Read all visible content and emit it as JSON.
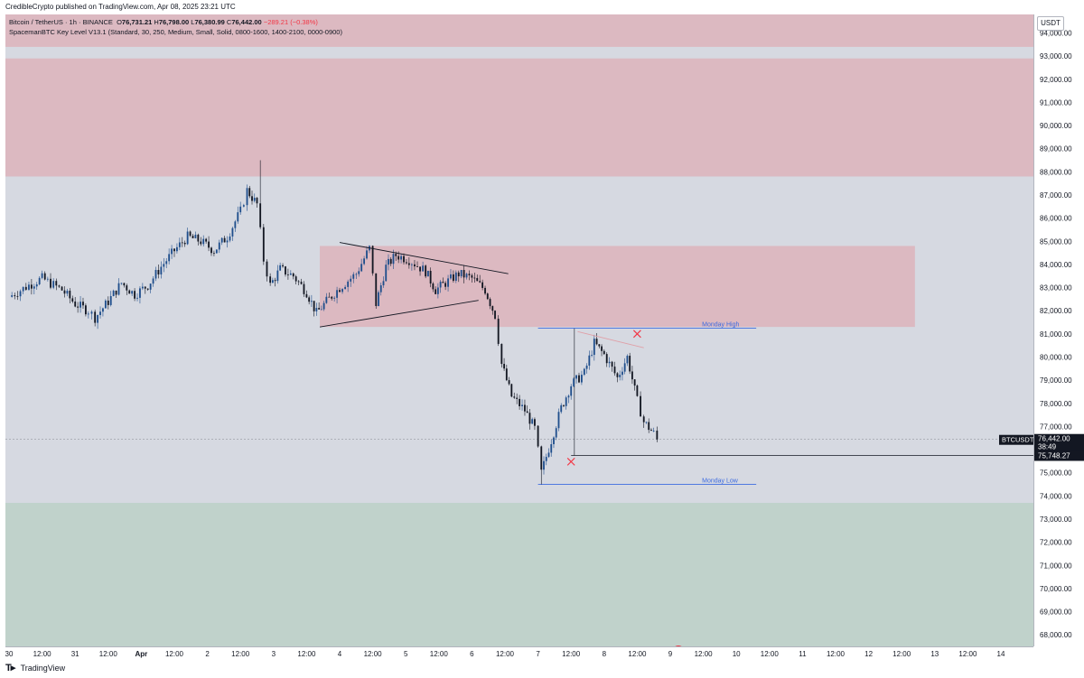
{
  "header": {
    "publisher_line": "CredibleCrypto published on TradingView.com, Apr 08, 2025 23:21 UTC"
  },
  "legend": {
    "symbol": "Bitcoin / TetherUS · 1h · BINANCE",
    "o_label": "O",
    "o_value": "76,731.21",
    "h_label": "H",
    "h_value": "76,798.00",
    "l_label": "L",
    "l_value": "76,380.99",
    "c_label": "C",
    "c_value": "76,442.00",
    "change": "−289.21 (−0.38%)",
    "indicator": "SpacemanBTC Key Level V13.1 (Standard, 30, 250, Medium, Small, Solid, 0800-1600, 1400-2100, 0000-0900)"
  },
  "currency": "USDT",
  "footer": {
    "brand": "TradingView",
    "brand_icon": "tradingview-logo-icon"
  },
  "colors": {
    "up": "#1f4e8c",
    "down": "#131722",
    "bg": "#d6d9e1",
    "supply_zone": "#dcb9c1",
    "demand_zone": "#c0d2cb",
    "monday_line": "#3d6be0",
    "marker": "#f23645"
  },
  "chart_data": {
    "type": "candlestick",
    "symbol": "BTCUSDT",
    "timeframe": "1h",
    "ylim": [
      67500,
      94800
    ],
    "x_tick_labels": [
      "30",
      "12:00",
      "31",
      "12:00",
      "Apr",
      "12:00",
      "2",
      "12:00",
      "3",
      "12:00",
      "4",
      "12:00",
      "5",
      "12:00",
      "6",
      "12:00",
      "7",
      "12:00",
      "8",
      "12:00",
      "9",
      "12:00",
      "10",
      "12:00",
      "11",
      "12:00",
      "12",
      "12:00",
      "13",
      "12:00",
      "14"
    ],
    "x_tick_days": [
      0,
      0.5,
      1,
      1.5,
      2,
      2.5,
      3,
      3.5,
      4,
      4.5,
      5,
      5.5,
      6,
      6.5,
      7,
      7.5,
      8,
      8.5,
      9,
      9.5,
      10,
      10.5,
      11,
      11.5,
      12,
      12.5,
      13,
      13.5,
      14,
      14.5,
      15
    ],
    "y_tick_values": [
      68000,
      69000,
      70000,
      71000,
      72000,
      73000,
      74000,
      75000,
      76000,
      77000,
      78000,
      79000,
      80000,
      81000,
      82000,
      83000,
      84000,
      85000,
      86000,
      87000,
      88000,
      89000,
      90000,
      91000,
      92000,
      93000,
      94000
    ],
    "y_tick_labels": [
      "68,000.00",
      "69,000.00",
      "70,000.00",
      "71,000.00",
      "72,000.00",
      "73,000.00",
      "74,000.00",
      "75,000.00",
      "76,000.00",
      "77,000.00",
      "78,000.00",
      "79,000.00",
      "80,000.00",
      "81,000.00",
      "82,000.00",
      "83,000.00",
      "84,000.00",
      "85,000.00",
      "86,000.00",
      "87,000.00",
      "88,000.00",
      "89,000.00",
      "90,000.00",
      "91,000.00",
      "92,000.00",
      "93,000.00",
      "94,000.00"
    ],
    "path_close": [
      [
        0,
        82600
      ],
      [
        0.3,
        83100
      ],
      [
        0.5,
        83400
      ],
      [
        0.8,
        82900
      ],
      [
        1.0,
        82300
      ],
      [
        1.2,
        82000
      ],
      [
        1.3,
        81700
      ],
      [
        1.5,
        82400
      ],
      [
        1.7,
        83200
      ],
      [
        1.9,
        82700
      ],
      [
        2.1,
        83100
      ],
      [
        2.3,
        83900
      ],
      [
        2.5,
        84600
      ],
      [
        2.7,
        85200
      ],
      [
        2.9,
        85000
      ],
      [
        3.1,
        84600
      ],
      [
        3.3,
        85200
      ],
      [
        3.5,
        86300
      ],
      [
        3.6,
        87200
      ],
      [
        3.75,
        86600
      ],
      [
        3.85,
        84200
      ],
      [
        3.95,
        83100
      ],
      [
        4.1,
        83800
      ],
      [
        4.3,
        83500
      ],
      [
        4.5,
        82800
      ],
      [
        4.65,
        81900
      ],
      [
        4.8,
        82400
      ],
      [
        5.0,
        83000
      ],
      [
        5.25,
        83600
      ],
      [
        5.45,
        84700
      ],
      [
        5.55,
        82300
      ],
      [
        5.7,
        83900
      ],
      [
        5.85,
        84400
      ],
      [
        6.05,
        84200
      ],
      [
        6.3,
        83700
      ],
      [
        6.45,
        82900
      ],
      [
        6.6,
        83200
      ],
      [
        6.8,
        83600
      ],
      [
        7.0,
        83400
      ],
      [
        7.2,
        82900
      ],
      [
        7.35,
        81800
      ],
      [
        7.45,
        79700
      ],
      [
        7.6,
        78300
      ],
      [
        7.8,
        77700
      ],
      [
        7.95,
        76900
      ],
      [
        8.05,
        75000
      ],
      [
        8.2,
        76400
      ],
      [
        8.35,
        77800
      ],
      [
        8.5,
        78800
      ],
      [
        8.7,
        79300
      ],
      [
        8.85,
        80600
      ],
      [
        9.0,
        80100
      ],
      [
        9.2,
        79100
      ],
      [
        9.35,
        80000
      ],
      [
        9.5,
        78100
      ],
      [
        9.6,
        77200
      ],
      [
        9.75,
        76700
      ],
      [
        9.8,
        76442
      ]
    ],
    "last_price": "76,442.00",
    "last_price_countdown": "38:49",
    "last_price_symbol": "BTCUSDT",
    "key_level_price": "75,748.27",
    "key_level_value": 75748.27,
    "current_price_value": 76442,
    "annotations": [
      {
        "label": "Monday High",
        "price": 81250,
        "from_day": 8.0,
        "to_day": 11.3
      },
      {
        "label": "Monday Low",
        "price": 74500,
        "from_day": 8.0,
        "to_day": 11.3
      }
    ],
    "zones": [
      {
        "kind": "supply",
        "from_price": 93400,
        "to_price": 94800
      },
      {
        "kind": "supply",
        "from_price": 87800,
        "to_price": 92900
      },
      {
        "kind": "supply",
        "from_price": 81300,
        "to_price": 84800,
        "from_day": 4.7,
        "to_day": 13.7
      },
      {
        "kind": "demand",
        "from_price": 67500,
        "to_price": 73700
      }
    ],
    "trendlines": [
      {
        "from": [
          5.0,
          84950
        ],
        "to": [
          7.55,
          83600
        ]
      },
      {
        "from": [
          4.7,
          81300
        ],
        "to": [
          7.1,
          82450
        ]
      },
      {
        "from": [
          8.6,
          81100
        ],
        "to": [
          9.6,
          80400
        ]
      }
    ],
    "markers": [
      {
        "shape": "x",
        "day": 8.5,
        "price": 75480
      },
      {
        "shape": "x",
        "day": 9.5,
        "price": 81000
      }
    ],
    "extremes": [
      {
        "kind": "high",
        "day": 3.8,
        "price": 88500
      },
      {
        "kind": "low",
        "day": 8.05,
        "price": 74500
      }
    ]
  }
}
